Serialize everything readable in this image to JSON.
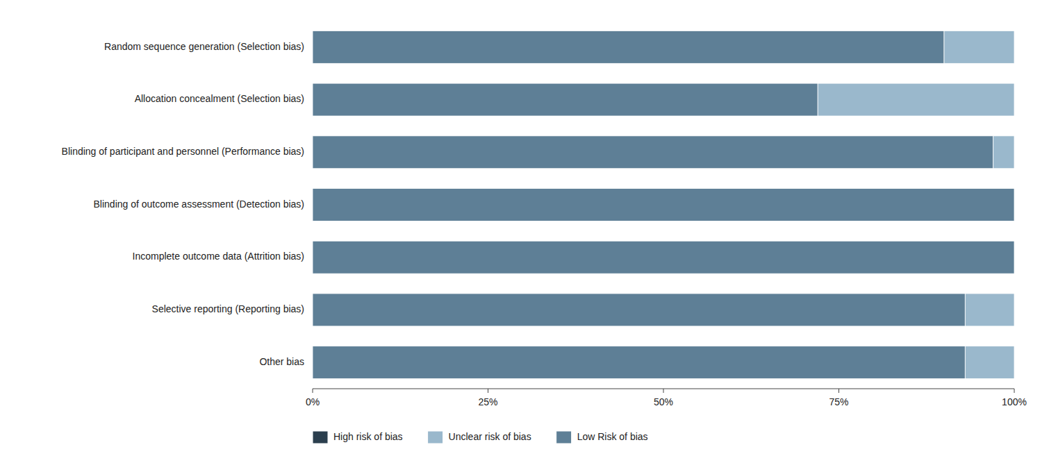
{
  "chart_data": {
    "type": "bar",
    "orientation": "horizontal",
    "stacked": true,
    "grid": false,
    "legend": "bottom",
    "categories": [
      "Random sequence generation (Selection bias)",
      "Allocation concealment (Selection bias)",
      "Blinding of participant and personnel (Performance bias)",
      "Blinding of outcome assessment (Detection bias)",
      "Incomplete outcome data (Attrition bias)",
      "Selective reporting (Reporting bias)",
      "Other bias"
    ],
    "series": [
      {
        "name": "Low Risk of bias",
        "color": "#5e7f96",
        "values": [
          90,
          72,
          97,
          100,
          100,
          93,
          93
        ]
      },
      {
        "name": "Unclear risk of bias",
        "color": "#9ab8cc",
        "values": [
          10,
          28,
          3,
          0,
          0,
          7,
          7
        ]
      },
      {
        "name": "High risk of bias",
        "color": "#2b3f4e",
        "values": [
          0,
          0,
          0,
          0,
          0,
          0,
          0
        ]
      }
    ],
    "xlim": [
      0,
      100
    ],
    "xticks": [
      {
        "value": 0,
        "label": "0%"
      },
      {
        "value": 25,
        "label": "25%"
      },
      {
        "value": 50,
        "label": "50%"
      },
      {
        "value": 75,
        "label": "75%"
      },
      {
        "value": 100,
        "label": "100%"
      }
    ]
  }
}
